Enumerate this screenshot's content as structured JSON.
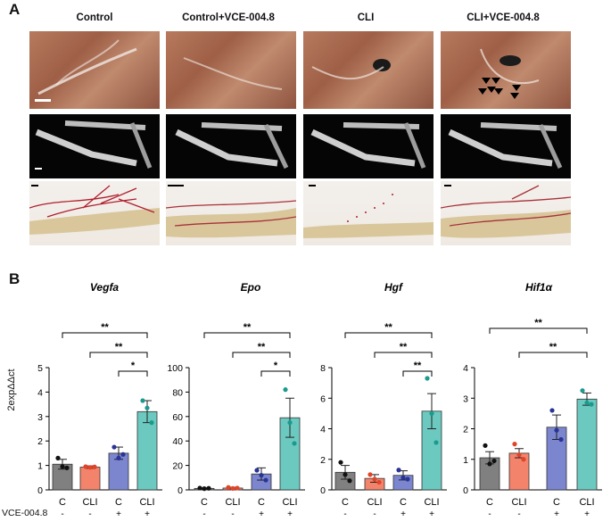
{
  "panel_a": {
    "letter": "A",
    "columns": [
      "Control",
      "Control+VCE-004.8",
      "CLI",
      "CLI+VCE-004.8"
    ],
    "arrowheads_icon": "black-arrowheads-icon"
  },
  "panel_b": {
    "letter": "B",
    "row_label": "VCE-004.8",
    "y_axis_label": "2expΔΔct"
  },
  "colors": {
    "C_untreated": "#808080",
    "CLI_untreated": "#f4836b",
    "C_treated": "#7b86cf",
    "CLI_treated": "#6cc9c0",
    "dot_C": "#111111",
    "dot_CLI": "#e0452a",
    "dot_C_treated": "#2a3494",
    "dot_CLI_treated": "#1b9a8e"
  },
  "chart_data": [
    {
      "type": "bar",
      "title": "Vegfa",
      "categories": [
        "C",
        "CLI",
        "C",
        "CLI"
      ],
      "treatment": [
        "-",
        "-",
        "+",
        "+"
      ],
      "values": [
        1.05,
        0.93,
        1.5,
        3.2
      ],
      "errors": [
        0.2,
        0.05,
        0.25,
        0.45
      ],
      "points": [
        [
          1.3,
          0.95,
          0.9
        ],
        [
          0.95,
          0.92,
          0.94
        ],
        [
          1.75,
          1.3,
          1.45
        ],
        [
          3.65,
          3.35,
          2.75
        ]
      ],
      "ylim": [
        0,
        5
      ],
      "yticks": [
        0,
        1,
        2,
        3,
        4,
        5
      ],
      "significance": [
        {
          "from": 0,
          "to": 3,
          "label": "**"
        },
        {
          "from": 1,
          "to": 3,
          "label": "**"
        },
        {
          "from": 2,
          "to": 3,
          "label": "*"
        }
      ]
    },
    {
      "type": "bar",
      "title": "Epo",
      "categories": [
        "C",
        "CLI",
        "C",
        "CLI"
      ],
      "treatment": [
        "-",
        "-",
        "+",
        "+"
      ],
      "values": [
        1.2,
        1.5,
        13,
        59
      ],
      "errors": [
        0.5,
        0.7,
        5,
        16
      ],
      "points": [
        [
          1.5,
          1.0,
          1.3
        ],
        [
          2.0,
          1.2,
          1.5
        ],
        [
          16,
          12,
          8
        ],
        [
          82,
          55,
          38
        ]
      ],
      "ylim": [
        0,
        100
      ],
      "yticks": [
        0,
        20,
        40,
        60,
        80,
        100
      ],
      "significance": [
        {
          "from": 0,
          "to": 3,
          "label": "**"
        },
        {
          "from": 1,
          "to": 3,
          "label": "**"
        },
        {
          "from": 2,
          "to": 3,
          "label": "*"
        }
      ]
    },
    {
      "type": "bar",
      "title": "Hgf",
      "categories": [
        "C",
        "CLI",
        "C",
        "CLI"
      ],
      "treatment": [
        "-",
        "-",
        "+",
        "+"
      ],
      "values": [
        1.15,
        0.75,
        0.95,
        5.15
      ],
      "errors": [
        0.45,
        0.25,
        0.3,
        1.15
      ],
      "points": [
        [
          1.8,
          1.0,
          0.6
        ],
        [
          1.0,
          0.7,
          0.5
        ],
        [
          1.3,
          0.8,
          0.7
        ],
        [
          7.3,
          5.0,
          3.1
        ]
      ],
      "ylim": [
        0,
        8
      ],
      "yticks": [
        0,
        2,
        4,
        6,
        8
      ],
      "significance": [
        {
          "from": 0,
          "to": 3,
          "label": "**"
        },
        {
          "from": 1,
          "to": 3,
          "label": "**"
        },
        {
          "from": 2,
          "to": 3,
          "label": "**"
        }
      ]
    },
    {
      "type": "bar",
      "title": "Hif1α",
      "categories": [
        "C",
        "CLI",
        "C",
        "CLI"
      ],
      "treatment": [
        "-",
        "-",
        "+",
        "+"
      ],
      "values": [
        1.05,
        1.2,
        2.05,
        2.97
      ],
      "errors": [
        0.2,
        0.15,
        0.4,
        0.2
      ],
      "points": [
        [
          1.45,
          0.85,
          0.95
        ],
        [
          1.5,
          1.15,
          1.0
        ],
        [
          2.6,
          1.95,
          1.65
        ],
        [
          3.25,
          2.85,
          2.8
        ]
      ],
      "ylim": [
        0,
        4
      ],
      "yticks": [
        0,
        1,
        2,
        3,
        4
      ],
      "significance": [
        {
          "from": 0,
          "to": 3,
          "label": "**"
        },
        {
          "from": 1,
          "to": 3,
          "label": "**"
        }
      ]
    }
  ]
}
